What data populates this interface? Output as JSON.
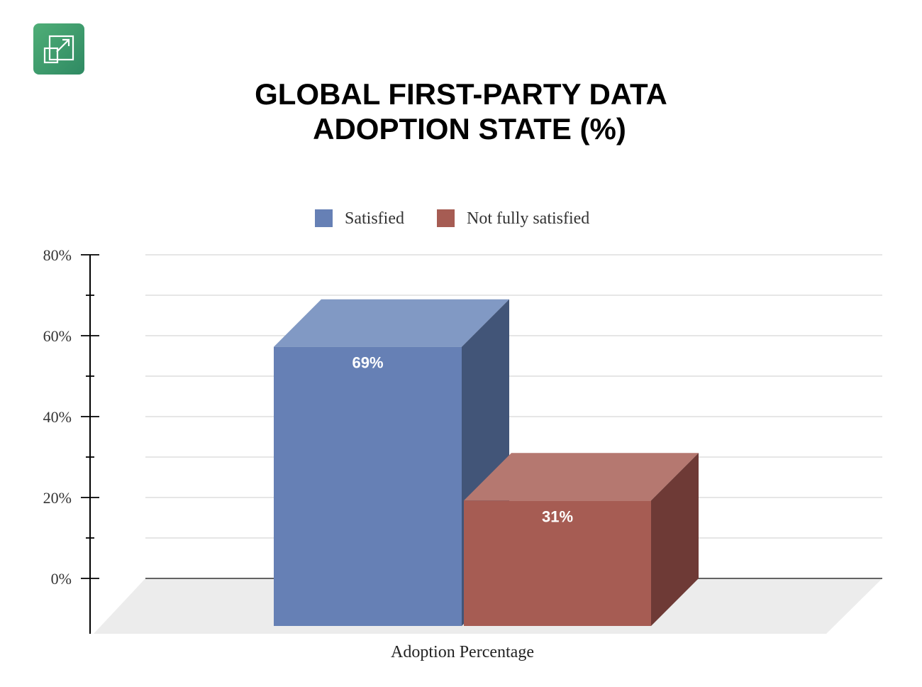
{
  "toolbar": {
    "expand_icon": "expand-icon"
  },
  "chart_data": {
    "type": "bar",
    "title_lines": [
      "GLOBAL FIRST-PARTY DATA",
      "ADOPTION STATE (%)"
    ],
    "categories": [
      "Adoption Percentage"
    ],
    "series": [
      {
        "name": "Satisfied",
        "values": [
          69
        ],
        "label": "69%",
        "color": "#6680b5",
        "top_color": "#8199c4",
        "side_color": "#425578"
      },
      {
        "name": "Not fully satisfied",
        "values": [
          31
        ],
        "label": "31%",
        "color": "#a65c53",
        "top_color": "#b57870",
        "side_color": "#6e3a36"
      }
    ],
    "xlabel": "Adoption Percentage",
    "ylabel": "",
    "ylim": [
      0,
      80
    ],
    "yticks": [
      "0%",
      "20%",
      "40%",
      "60%",
      "80%"
    ],
    "grid": true,
    "legend": "top-center",
    "style": "3d"
  }
}
